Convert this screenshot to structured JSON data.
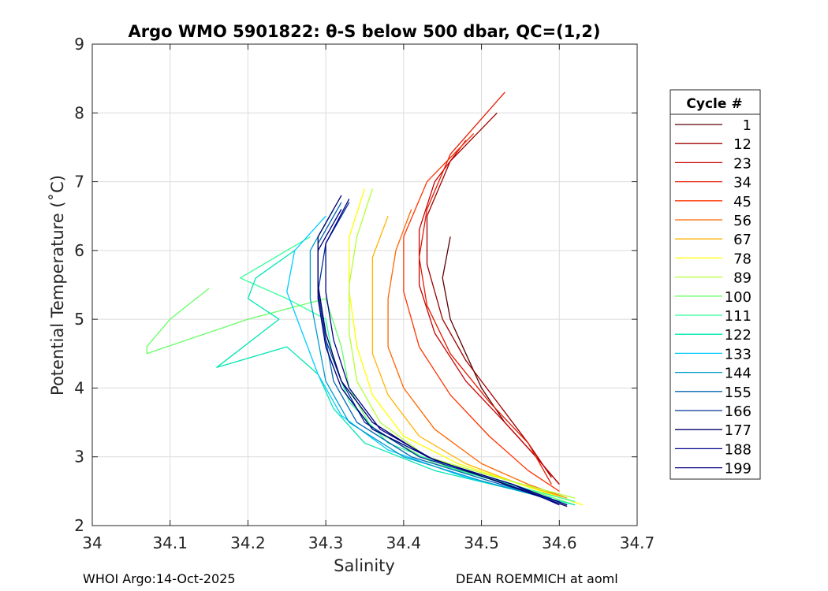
{
  "chart_data": {
    "type": "line",
    "title": "Argo WMO 5901822: θ-S below 500 dbar,  QC=(1,2)",
    "xlabel": "Salinity",
    "ylabel": "Potential Temperature (˚C)",
    "xlim": [
      34.0,
      34.7
    ],
    "ylim": [
      2,
      9
    ],
    "x_ticks": [
      "34",
      "34.1",
      "34.2",
      "34.3",
      "34.4",
      "34.5",
      "34.6",
      "34.7"
    ],
    "y_ticks": [
      "2",
      "3",
      "4",
      "5",
      "6",
      "7",
      "8",
      "9"
    ],
    "grid": true,
    "legend": {
      "title": "Cycle #",
      "placement": "right",
      "entries": [
        {
          "label": "1",
          "color": "#5a0000"
        },
        {
          "label": "12",
          "color": "#a00000"
        },
        {
          "label": "23",
          "color": "#c80000"
        },
        {
          "label": "34",
          "color": "#e61a00"
        },
        {
          "label": "45",
          "color": "#ff3300"
        },
        {
          "label": "56",
          "color": "#ff6600"
        },
        {
          "label": "67",
          "color": "#ffb300"
        },
        {
          "label": "78",
          "color": "#ffff00"
        },
        {
          "label": "89",
          "color": "#b3ff33"
        },
        {
          "label": "100",
          "color": "#66ff66"
        },
        {
          "label": "111",
          "color": "#33ff99"
        },
        {
          "label": "122",
          "color": "#00e6b3"
        },
        {
          "label": "133",
          "color": "#00ccff"
        },
        {
          "label": "144",
          "color": "#0099cc"
        },
        {
          "label": "155",
          "color": "#0066b3"
        },
        {
          "label": "166",
          "color": "#003399"
        },
        {
          "label": "177",
          "color": "#000066"
        },
        {
          "label": "188",
          "color": "#00008f"
        },
        {
          "label": "199",
          "color": "#000080"
        }
      ]
    },
    "series": [
      {
        "name": "1",
        "color": "#5a0000",
        "points": [
          [
            34.46,
            6.2
          ],
          [
            34.45,
            5.6
          ],
          [
            34.46,
            5.0
          ],
          [
            34.48,
            4.5
          ],
          [
            34.5,
            4.0
          ],
          [
            34.53,
            3.5
          ],
          [
            34.57,
            3.0
          ],
          [
            34.6,
            2.6
          ]
        ]
      },
      {
        "name": "12",
        "color": "#a00000",
        "points": [
          [
            34.52,
            8.0
          ],
          [
            34.46,
            7.3
          ],
          [
            34.43,
            6.5
          ],
          [
            34.43,
            5.8
          ],
          [
            34.45,
            5.0
          ],
          [
            34.48,
            4.4
          ],
          [
            34.52,
            3.8
          ],
          [
            34.56,
            3.2
          ],
          [
            34.59,
            2.7
          ]
        ]
      },
      {
        "name": "23",
        "color": "#c80000",
        "points": [
          [
            34.48,
            7.6
          ],
          [
            34.44,
            7.0
          ],
          [
            34.42,
            6.3
          ],
          [
            34.42,
            5.5
          ],
          [
            34.44,
            4.8
          ],
          [
            34.48,
            4.1
          ],
          [
            34.53,
            3.5
          ],
          [
            34.57,
            3.0
          ],
          [
            34.6,
            2.6
          ]
        ]
      },
      {
        "name": "34",
        "color": "#e61a00",
        "points": [
          [
            34.53,
            8.3
          ],
          [
            34.46,
            7.4
          ],
          [
            34.43,
            6.6
          ],
          [
            34.42,
            5.9
          ],
          [
            34.43,
            5.2
          ],
          [
            34.46,
            4.5
          ],
          [
            34.51,
            3.8
          ],
          [
            34.56,
            3.2
          ],
          [
            34.59,
            2.6
          ]
        ]
      },
      {
        "name": "45",
        "color": "#ff3300",
        "points": [
          [
            34.49,
            7.7
          ],
          [
            34.43,
            7.0
          ],
          [
            34.4,
            6.2
          ],
          [
            34.4,
            5.4
          ],
          [
            34.42,
            4.6
          ],
          [
            34.46,
            3.9
          ],
          [
            34.51,
            3.3
          ],
          [
            34.56,
            2.8
          ],
          [
            34.6,
            2.5
          ]
        ]
      },
      {
        "name": "56",
        "color": "#ff6600",
        "points": [
          [
            34.41,
            6.6
          ],
          [
            34.39,
            6.0
          ],
          [
            34.38,
            5.3
          ],
          [
            34.38,
            4.6
          ],
          [
            34.4,
            4.0
          ],
          [
            34.44,
            3.4
          ],
          [
            34.5,
            2.9
          ],
          [
            34.56,
            2.6
          ],
          [
            34.61,
            2.4
          ]
        ]
      },
      {
        "name": "67",
        "color": "#ffb300",
        "points": [
          [
            34.38,
            6.5
          ],
          [
            34.36,
            5.9
          ],
          [
            34.36,
            5.2
          ],
          [
            34.36,
            4.5
          ],
          [
            34.38,
            3.9
          ],
          [
            34.42,
            3.3
          ],
          [
            34.48,
            2.9
          ],
          [
            34.55,
            2.6
          ],
          [
            34.61,
            2.4
          ]
        ]
      },
      {
        "name": "78",
        "color": "#ffff00",
        "points": [
          [
            34.35,
            6.9
          ],
          [
            34.33,
            6.2
          ],
          [
            34.33,
            5.4
          ],
          [
            34.34,
            4.6
          ],
          [
            34.36,
            3.9
          ],
          [
            34.4,
            3.3
          ],
          [
            34.47,
            2.9
          ],
          [
            34.55,
            2.6
          ],
          [
            34.63,
            2.3
          ]
        ]
      },
      {
        "name": "89",
        "color": "#b3ff33",
        "points": [
          [
            34.36,
            6.9
          ],
          [
            34.34,
            6.2
          ],
          [
            34.33,
            5.5
          ],
          [
            34.33,
            4.8
          ],
          [
            34.34,
            4.1
          ],
          [
            34.37,
            3.5
          ],
          [
            34.43,
            3.0
          ],
          [
            34.52,
            2.7
          ],
          [
            34.62,
            2.4
          ]
        ]
      },
      {
        "name": "100",
        "color": "#66ff66",
        "points": [
          [
            34.15,
            5.45
          ],
          [
            34.1,
            5.0
          ],
          [
            34.07,
            4.6
          ],
          [
            34.07,
            4.5
          ],
          [
            34.2,
            5.0
          ],
          [
            34.3,
            5.3
          ],
          [
            34.32,
            4.6
          ],
          [
            34.33,
            4.0
          ],
          [
            34.36,
            3.4
          ],
          [
            34.44,
            2.9
          ],
          [
            34.54,
            2.6
          ],
          [
            34.62,
            2.3
          ]
        ]
      },
      {
        "name": "111",
        "color": "#33ff99",
        "points": [
          [
            34.28,
            6.2
          ],
          [
            34.22,
            5.8
          ],
          [
            34.19,
            5.6
          ],
          [
            34.25,
            5.3
          ],
          [
            34.3,
            5.0
          ],
          [
            34.31,
            4.4
          ],
          [
            34.33,
            3.8
          ],
          [
            34.38,
            3.2
          ],
          [
            34.47,
            2.8
          ],
          [
            34.57,
            2.5
          ],
          [
            34.62,
            2.35
          ]
        ]
      },
      {
        "name": "122",
        "color": "#00e6b3",
        "points": [
          [
            34.26,
            6.0
          ],
          [
            34.21,
            5.6
          ],
          [
            34.2,
            5.3
          ],
          [
            34.24,
            5.0
          ],
          [
            34.16,
            4.3
          ],
          [
            34.25,
            4.6
          ],
          [
            34.29,
            4.2
          ],
          [
            34.31,
            3.7
          ],
          [
            34.35,
            3.2
          ],
          [
            34.44,
            2.8
          ],
          [
            34.55,
            2.5
          ],
          [
            34.62,
            2.3
          ]
        ]
      },
      {
        "name": "133",
        "color": "#00ccff",
        "points": [
          [
            34.3,
            6.5
          ],
          [
            34.26,
            6.0
          ],
          [
            34.25,
            5.4
          ],
          [
            34.27,
            4.8
          ],
          [
            34.29,
            4.2
          ],
          [
            34.32,
            3.6
          ],
          [
            34.38,
            3.1
          ],
          [
            34.48,
            2.7
          ],
          [
            34.59,
            2.4
          ]
        ]
      },
      {
        "name": "144",
        "color": "#0099cc",
        "points": [
          [
            34.31,
            6.6
          ],
          [
            34.28,
            6.0
          ],
          [
            34.28,
            5.3
          ],
          [
            34.29,
            4.7
          ],
          [
            34.3,
            4.1
          ],
          [
            34.33,
            3.5
          ],
          [
            34.4,
            3.0
          ],
          [
            34.5,
            2.65
          ],
          [
            34.6,
            2.35
          ]
        ]
      },
      {
        "name": "155",
        "color": "#0066b3",
        "points": [
          [
            34.32,
            6.7
          ],
          [
            34.29,
            6.1
          ],
          [
            34.29,
            5.4
          ],
          [
            34.3,
            4.7
          ],
          [
            34.31,
            4.1
          ],
          [
            34.34,
            3.5
          ],
          [
            34.41,
            3.0
          ],
          [
            34.51,
            2.65
          ],
          [
            34.6,
            2.35
          ]
        ]
      },
      {
        "name": "166",
        "color": "#003399",
        "points": [
          [
            34.33,
            6.7
          ],
          [
            34.3,
            6.1
          ],
          [
            34.29,
            5.4
          ],
          [
            34.3,
            4.7
          ],
          [
            34.32,
            4.1
          ],
          [
            34.35,
            3.5
          ],
          [
            34.42,
            3.0
          ],
          [
            34.52,
            2.65
          ],
          [
            34.61,
            2.3
          ]
        ]
      },
      {
        "name": "177",
        "color": "#000066",
        "points": [
          [
            34.32,
            6.8
          ],
          [
            34.29,
            6.2
          ],
          [
            34.29,
            5.5
          ],
          [
            34.3,
            4.8
          ],
          [
            34.32,
            4.1
          ],
          [
            34.36,
            3.5
          ],
          [
            34.43,
            3.0
          ],
          [
            34.53,
            2.6
          ],
          [
            34.61,
            2.28
          ]
        ]
      },
      {
        "name": "188",
        "color": "#00008f",
        "points": [
          [
            34.33,
            6.75
          ],
          [
            34.3,
            6.1
          ],
          [
            34.3,
            5.4
          ],
          [
            34.31,
            4.7
          ],
          [
            34.33,
            4.0
          ],
          [
            34.37,
            3.4
          ],
          [
            34.44,
            2.95
          ],
          [
            34.54,
            2.6
          ],
          [
            34.6,
            2.3
          ]
        ]
      },
      {
        "name": "199",
        "color": "#000080",
        "points": [
          [
            34.32,
            6.6
          ],
          [
            34.29,
            6.0
          ],
          [
            34.29,
            5.3
          ],
          [
            34.3,
            4.6
          ],
          [
            34.32,
            4.0
          ],
          [
            34.36,
            3.4
          ],
          [
            34.44,
            2.95
          ],
          [
            34.54,
            2.6
          ],
          [
            34.61,
            2.3
          ]
        ]
      }
    ]
  },
  "footer": {
    "left": "WHOI Argo:14-Oct-2025",
    "right": "DEAN ROEMMICH at aoml"
  }
}
